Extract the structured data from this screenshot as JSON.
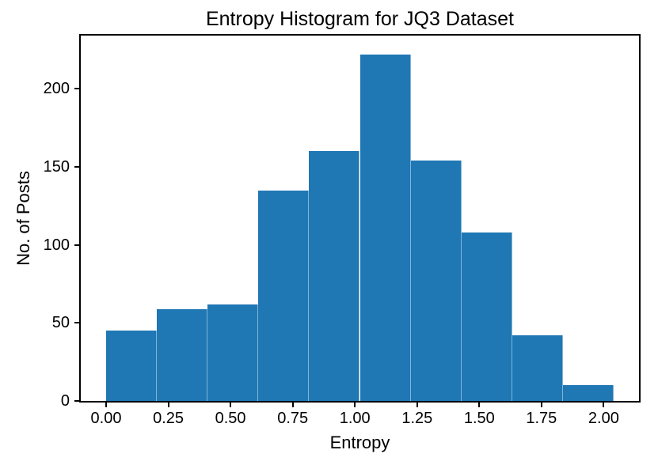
{
  "chart_data": {
    "type": "bar",
    "subtype": "histogram",
    "title": "Entropy Histogram for JQ3 Dataset",
    "xlabel": "Entropy",
    "ylabel": "No. of Posts",
    "bin_edges": [
      0.0,
      0.204,
      0.408,
      0.612,
      0.816,
      1.02,
      1.224,
      1.428,
      1.632,
      1.836,
      2.04
    ],
    "counts": [
      45,
      59,
      62,
      135,
      160,
      222,
      154,
      108,
      42,
      10
    ],
    "x_ticks": [
      {
        "value": 0.0,
        "label": "0.00"
      },
      {
        "value": 0.25,
        "label": "0.25"
      },
      {
        "value": 0.5,
        "label": "0.50"
      },
      {
        "value": 0.75,
        "label": "0.75"
      },
      {
        "value": 1.0,
        "label": "1.00"
      },
      {
        "value": 1.25,
        "label": "1.25"
      },
      {
        "value": 1.5,
        "label": "1.50"
      },
      {
        "value": 1.75,
        "label": "1.75"
      },
      {
        "value": 2.0,
        "label": "2.00"
      }
    ],
    "y_ticks": [
      {
        "value": 0,
        "label": "0"
      },
      {
        "value": 50,
        "label": "50"
      },
      {
        "value": 100,
        "label": "100"
      },
      {
        "value": 150,
        "label": "150"
      },
      {
        "value": 200,
        "label": "200"
      }
    ],
    "xlim": [
      -0.102,
      2.142
    ],
    "ylim": [
      0,
      234
    ],
    "bar_color": "#1f77b4",
    "axis_color": "#000000",
    "background_color": "#ffffff",
    "grid": false,
    "legend": null
  }
}
